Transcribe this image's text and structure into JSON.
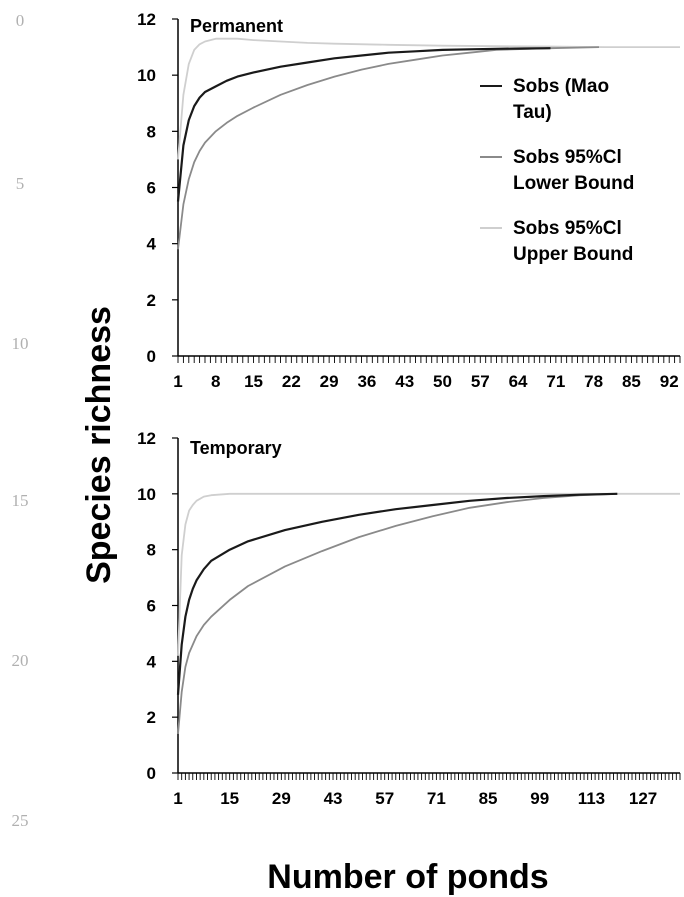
{
  "figure": {
    "ylabel": "Species richness",
    "xlabel": "Number of ponds",
    "margin_numbers": [
      "0",
      "5",
      "10",
      "15",
      "20",
      "25"
    ]
  },
  "legend": {
    "entries": [
      {
        "lines": [
          "Sobs (Mao",
          "Tau)"
        ],
        "color": "#1a1a1a"
      },
      {
        "lines": [
          "Sobs 95%Cl",
          "Lower Bound"
        ],
        "color": "#8a8a8a"
      },
      {
        "lines": [
          "Sobs 95%Cl",
          "Upper Bound"
        ],
        "color": "#cfcfcf"
      }
    ]
  },
  "chart_data": [
    {
      "type": "line",
      "title": "Permanent",
      "xlim": [
        1,
        94
      ],
      "ylim": [
        0,
        12
      ],
      "yticks": [
        0,
        2,
        4,
        6,
        8,
        10,
        12
      ],
      "xtick_labels": [
        1,
        8,
        15,
        22,
        29,
        36,
        43,
        50,
        57,
        64,
        71,
        78,
        85,
        92
      ],
      "series": [
        {
          "name": "Sobs (Mao Tau)",
          "color": "#1a1a1a",
          "x": [
            1,
            2,
            3,
            4,
            5,
            6,
            8,
            10,
            12,
            15,
            20,
            25,
            30,
            35,
            40,
            45,
            50,
            55,
            60,
            65,
            70
          ],
          "y": [
            5.5,
            7.5,
            8.4,
            8.9,
            9.2,
            9.4,
            9.6,
            9.8,
            9.95,
            10.1,
            10.3,
            10.45,
            10.6,
            10.7,
            10.8,
            10.85,
            10.9,
            10.92,
            10.94,
            10.95,
            10.96
          ]
        },
        {
          "name": "Sobs 95%Cl Lower Bound",
          "color": "#8a8a8a",
          "x": [
            1,
            2,
            3,
            4,
            5,
            6,
            8,
            10,
            12,
            15,
            20,
            25,
            30,
            35,
            40,
            45,
            50,
            55,
            60,
            65,
            70,
            75,
            79
          ],
          "y": [
            3.8,
            5.4,
            6.3,
            6.9,
            7.3,
            7.6,
            8.0,
            8.3,
            8.55,
            8.85,
            9.3,
            9.65,
            9.95,
            10.2,
            10.4,
            10.55,
            10.7,
            10.8,
            10.9,
            10.93,
            10.96,
            10.98,
            11.0
          ]
        },
        {
          "name": "Sobs 95%Cl Upper Bound",
          "color": "#cfcfcf",
          "x": [
            1,
            2,
            3,
            4,
            5,
            6,
            8,
            10,
            12,
            15,
            20,
            25,
            30,
            40,
            50,
            60,
            70,
            80,
            94
          ],
          "y": [
            7.0,
            9.3,
            10.4,
            10.9,
            11.1,
            11.2,
            11.3,
            11.3,
            11.3,
            11.25,
            11.2,
            11.15,
            11.12,
            11.08,
            11.05,
            11.03,
            11.02,
            11.0,
            11.0
          ]
        }
      ]
    },
    {
      "type": "line",
      "title": "Temporary",
      "xlim": [
        1,
        137
      ],
      "ylim": [
        0,
        12
      ],
      "yticks": [
        0,
        2,
        4,
        6,
        8,
        10,
        12
      ],
      "xtick_labels": [
        1,
        15,
        29,
        43,
        57,
        71,
        85,
        99,
        113,
        127
      ],
      "series": [
        {
          "name": "Sobs (Mao Tau)",
          "color": "#1a1a1a",
          "x": [
            1,
            2,
            3,
            4,
            5,
            6,
            8,
            10,
            15,
            20,
            30,
            40,
            50,
            60,
            70,
            80,
            90,
            100,
            110,
            120
          ],
          "y": [
            2.8,
            4.6,
            5.6,
            6.2,
            6.6,
            6.9,
            7.3,
            7.6,
            8.0,
            8.3,
            8.7,
            9.0,
            9.25,
            9.45,
            9.6,
            9.75,
            9.85,
            9.92,
            9.97,
            10.0
          ]
        },
        {
          "name": "Sobs 95%Cl Lower Bound",
          "color": "#8a8a8a",
          "x": [
            1,
            2,
            3,
            4,
            5,
            6,
            8,
            10,
            15,
            20,
            30,
            40,
            50,
            60,
            70,
            80,
            90,
            100,
            110,
            120
          ],
          "y": [
            1.4,
            2.9,
            3.8,
            4.3,
            4.6,
            4.9,
            5.3,
            5.6,
            6.2,
            6.7,
            7.4,
            7.95,
            8.45,
            8.85,
            9.2,
            9.5,
            9.7,
            9.85,
            9.95,
            10.0
          ]
        },
        {
          "name": "Sobs 95%Cl Upper Bound",
          "color": "#cfcfcf",
          "x": [
            1,
            2,
            3,
            4,
            5,
            6,
            8,
            10,
            15,
            20,
            40,
            60,
            80,
            100,
            137
          ],
          "y": [
            4.2,
            7.8,
            8.9,
            9.4,
            9.6,
            9.75,
            9.9,
            9.95,
            10.0,
            10.0,
            10.0,
            10.0,
            10.0,
            10.0,
            10.0
          ]
        }
      ]
    }
  ]
}
